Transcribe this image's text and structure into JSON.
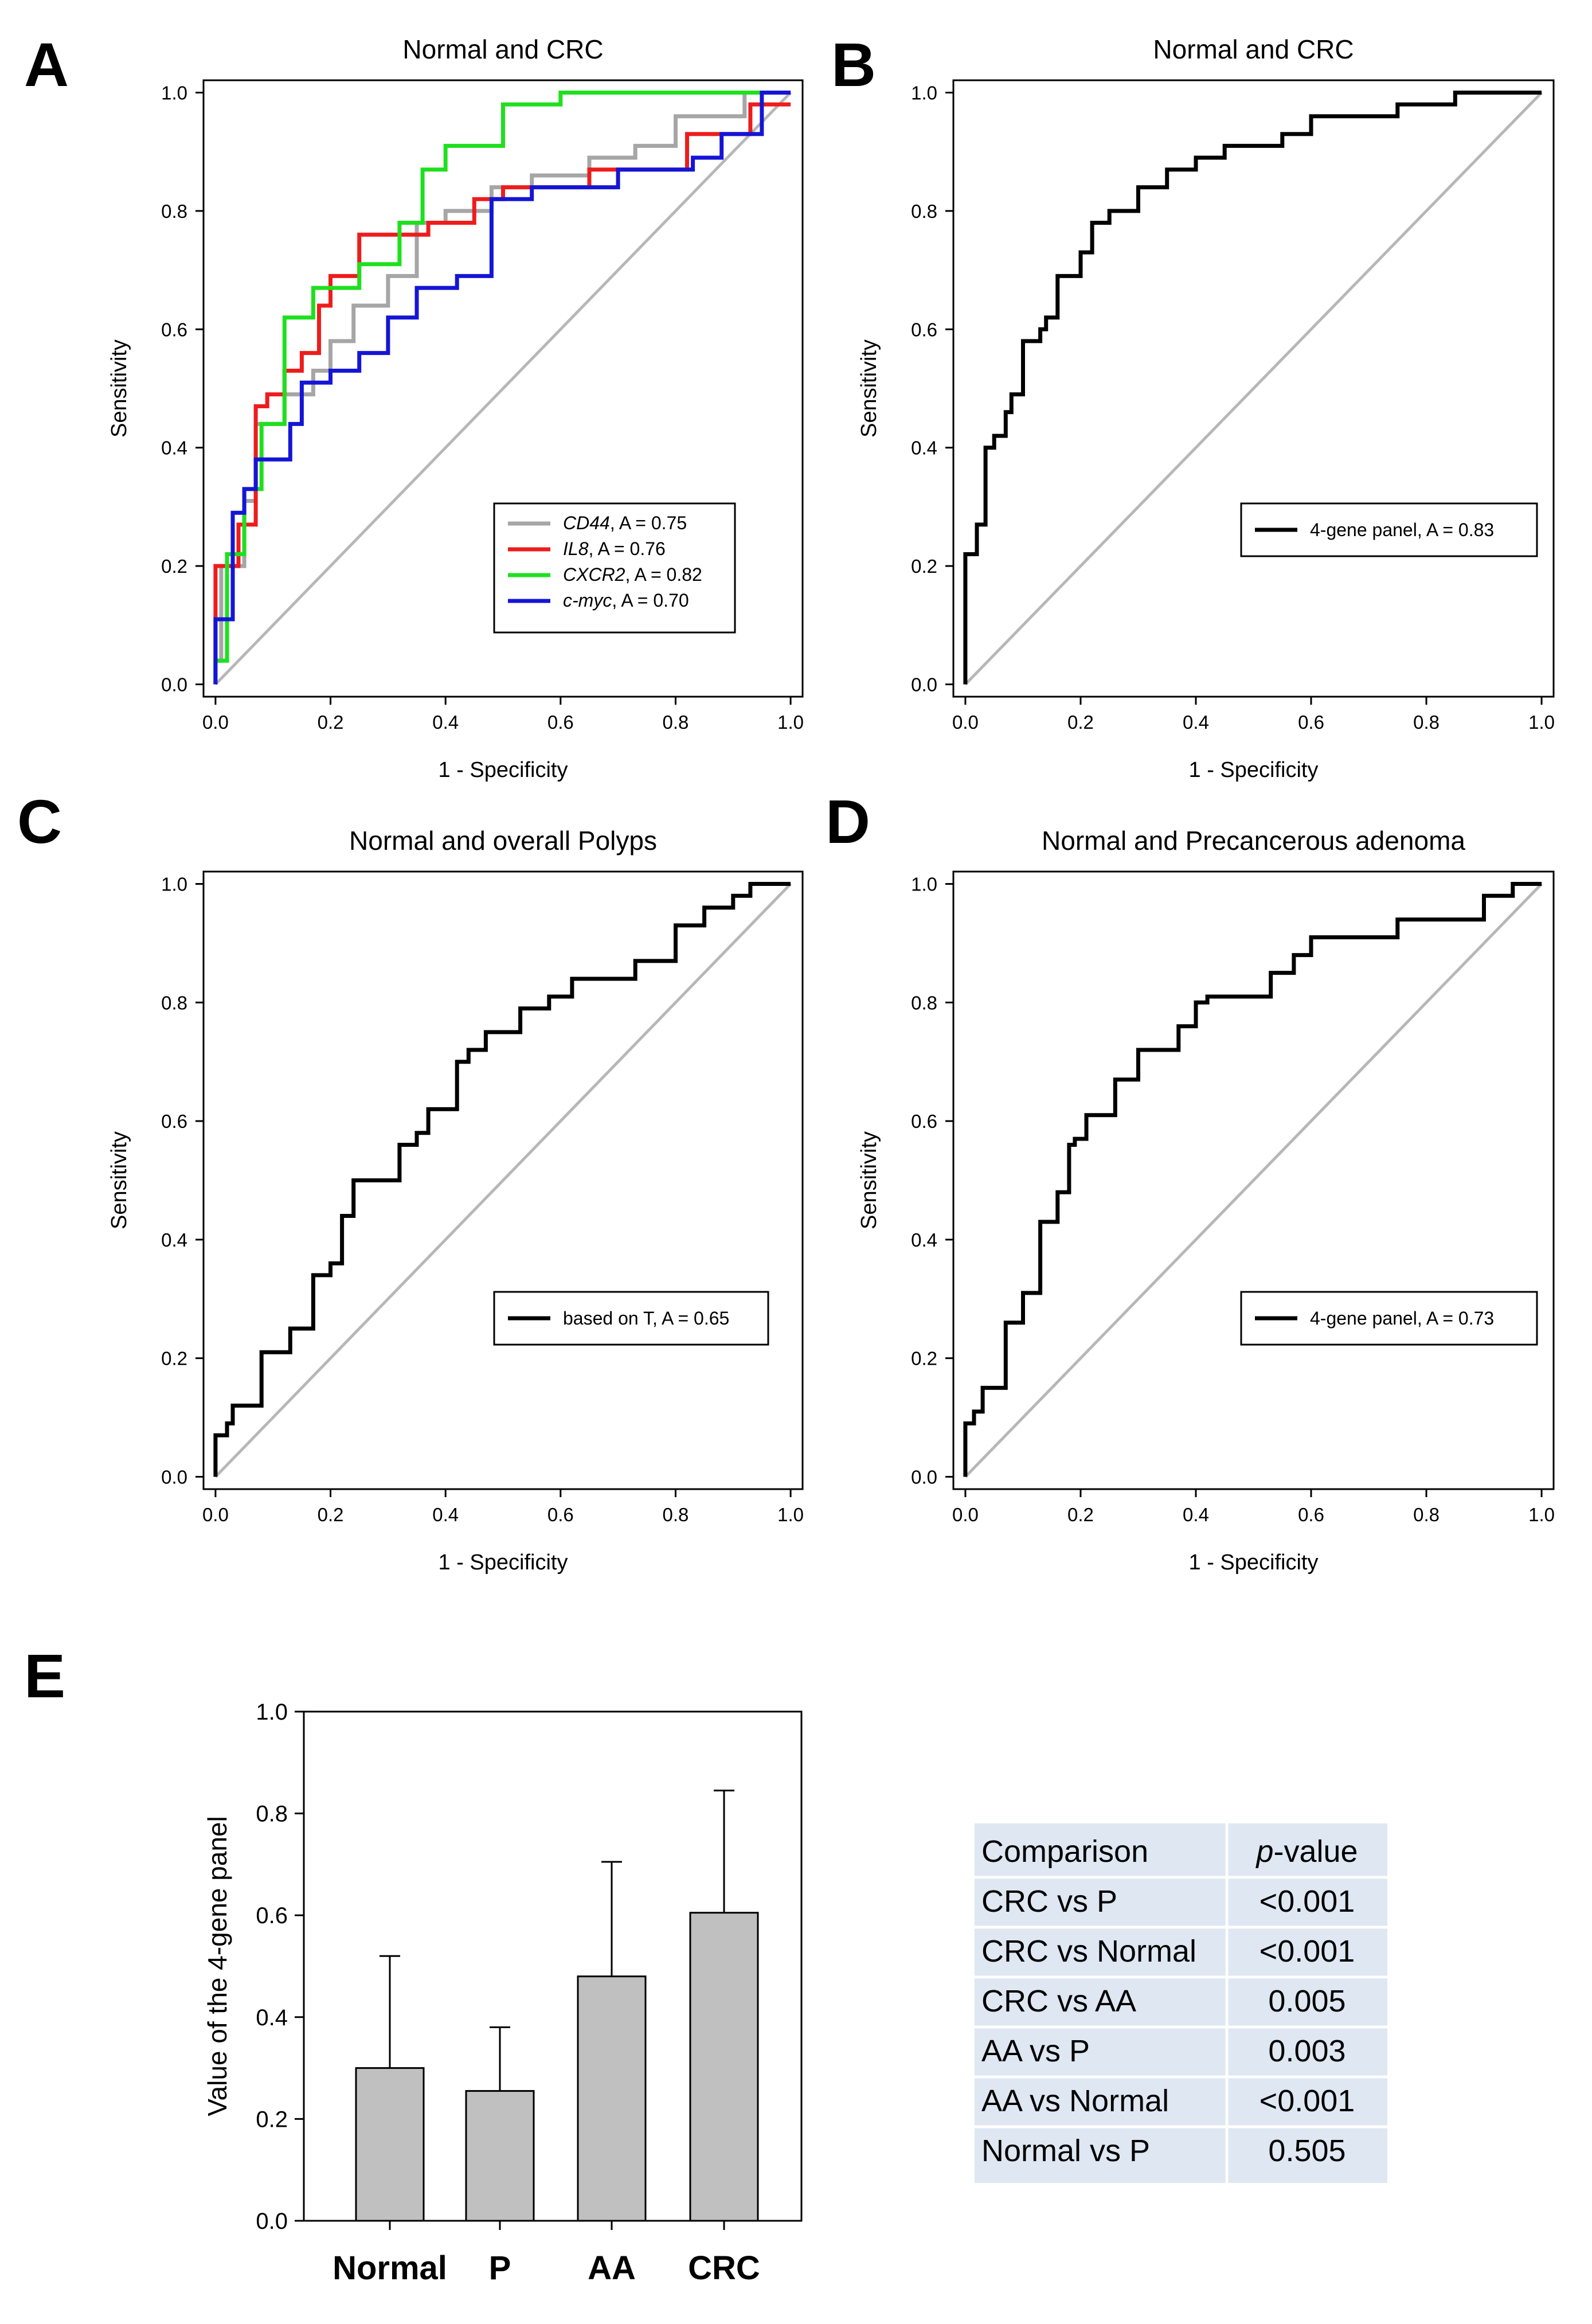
{
  "figure": {
    "panel_letters": [
      "A",
      "B",
      "C",
      "D",
      "E"
    ]
  },
  "colors": {
    "gray": "#a6a6a6",
    "red": "#ee1c1c",
    "green": "#1ee01e",
    "blue": "#1515d6",
    "black": "#000000",
    "bar_fill": "#c0c0c0",
    "table_fill": "#dee7f2"
  },
  "chart_data": [
    {
      "panel": "A",
      "type": "line",
      "title": "Normal and CRC",
      "xlabel": "1 - Specificity",
      "ylabel": "Sensitivity",
      "xlim": [
        0,
        1
      ],
      "ylim": [
        0,
        1
      ],
      "xticks": [
        "0.0",
        "0.2",
        "0.4",
        "0.6",
        "0.8",
        "1.0"
      ],
      "yticks": [
        "0.0",
        "0.2",
        "0.4",
        "0.6",
        "0.8",
        "1.0"
      ],
      "legend_position": "bottom-right",
      "series": [
        {
          "name": "CD44",
          "auc": "A = 0.75",
          "color_key": "gray",
          "x": [
            0,
            0,
            0.01,
            0.01,
            0.05,
            0.05,
            0.07,
            0.07,
            0.12,
            0.12,
            0.17,
            0.17,
            0.2,
            0.2,
            0.24,
            0.24,
            0.3,
            0.3,
            0.35,
            0.35,
            0.4,
            0.4,
            0.48,
            0.48,
            0.55,
            0.55,
            0.65,
            0.65,
            0.73,
            0.73,
            0.8,
            0.8,
            0.92,
            0.92,
            1
          ],
          "y": [
            0,
            0.04,
            0.04,
            0.2,
            0.2,
            0.31,
            0.31,
            0.44,
            0.44,
            0.49,
            0.49,
            0.53,
            0.53,
            0.58,
            0.58,
            0.64,
            0.64,
            0.69,
            0.69,
            0.78,
            0.78,
            0.8,
            0.8,
            0.84,
            0.84,
            0.86,
            0.86,
            0.89,
            0.89,
            0.91,
            0.91,
            0.96,
            0.96,
            1,
            1
          ]
        },
        {
          "name": "IL8",
          "auc": "A = 0.76",
          "color_key": "red",
          "x": [
            0,
            0,
            0.04,
            0.04,
            0.07,
            0.07,
            0.09,
            0.09,
            0.12,
            0.12,
            0.15,
            0.15,
            0.18,
            0.18,
            0.2,
            0.2,
            0.25,
            0.25,
            0.37,
            0.37,
            0.45,
            0.45,
            0.5,
            0.5,
            0.65,
            0.65,
            0.82,
            0.82,
            0.93,
            0.93,
            1
          ],
          "y": [
            0,
            0.2,
            0.2,
            0.27,
            0.27,
            0.47,
            0.47,
            0.49,
            0.49,
            0.53,
            0.53,
            0.56,
            0.56,
            0.64,
            0.64,
            0.69,
            0.69,
            0.76,
            0.76,
            0.78,
            0.78,
            0.82,
            0.82,
            0.84,
            0.84,
            0.87,
            0.87,
            0.93,
            0.93,
            0.98,
            0.98
          ]
        },
        {
          "name": "CXCR2",
          "auc": "A = 0.82",
          "color_key": "green",
          "x": [
            0,
            0,
            0.02,
            0.02,
            0.05,
            0.05,
            0.08,
            0.08,
            0.12,
            0.12,
            0.17,
            0.17,
            0.25,
            0.25,
            0.32,
            0.32,
            0.36,
            0.36,
            0.4,
            0.4,
            0.5,
            0.5,
            0.6,
            0.6,
            0.8,
            0.8,
            1
          ],
          "y": [
            0,
            0.04,
            0.04,
            0.22,
            0.22,
            0.33,
            0.33,
            0.44,
            0.44,
            0.62,
            0.62,
            0.67,
            0.67,
            0.71,
            0.71,
            0.78,
            0.78,
            0.87,
            0.87,
            0.91,
            0.91,
            0.98,
            0.98,
            1,
            1,
            1,
            1
          ]
        },
        {
          "name": "c-myc",
          "auc": "A = 0.70",
          "color_key": "blue",
          "x": [
            0,
            0,
            0.03,
            0.03,
            0.05,
            0.05,
            0.07,
            0.07,
            0.13,
            0.13,
            0.15,
            0.15,
            0.2,
            0.2,
            0.25,
            0.25,
            0.3,
            0.3,
            0.35,
            0.35,
            0.42,
            0.42,
            0.48,
            0.48,
            0.55,
            0.55,
            0.7,
            0.7,
            0.83,
            0.83,
            0.88,
            0.88,
            0.95,
            0.95,
            0.99,
            0.99,
            1
          ],
          "y": [
            0,
            0.11,
            0.11,
            0.29,
            0.29,
            0.33,
            0.33,
            0.38,
            0.38,
            0.44,
            0.44,
            0.51,
            0.51,
            0.53,
            0.53,
            0.56,
            0.56,
            0.62,
            0.62,
            0.67,
            0.67,
            0.69,
            0.69,
            0.82,
            0.82,
            0.84,
            0.84,
            0.87,
            0.87,
            0.89,
            0.89,
            0.93,
            0.93,
            1,
            1,
            1,
            1
          ]
        }
      ]
    },
    {
      "panel": "B",
      "type": "line",
      "title": "Normal and CRC",
      "xlabel": "1 - Specificity",
      "ylabel": "Sensitivity",
      "xlim": [
        0,
        1
      ],
      "ylim": [
        0,
        1
      ],
      "xticks": [
        "0.0",
        "0.2",
        "0.4",
        "0.6",
        "0.8",
        "1.0"
      ],
      "yticks": [
        "0.0",
        "0.2",
        "0.4",
        "0.6",
        "0.8",
        "1.0"
      ],
      "legend_position": "bottom-right",
      "series": [
        {
          "name": "4-gene panel, A = 0.83",
          "color_key": "black",
          "x": [
            0,
            0,
            0.02,
            0.02,
            0.035,
            0.035,
            0.05,
            0.05,
            0.07,
            0.07,
            0.08,
            0.08,
            0.1,
            0.1,
            0.13,
            0.13,
            0.14,
            0.14,
            0.16,
            0.16,
            0.2,
            0.2,
            0.22,
            0.22,
            0.25,
            0.25,
            0.3,
            0.3,
            0.35,
            0.35,
            0.4,
            0.4,
            0.45,
            0.45,
            0.55,
            0.55,
            0.6,
            0.6,
            0.75,
            0.75,
            0.85,
            0.85,
            1
          ],
          "y": [
            0,
            0.22,
            0.22,
            0.27,
            0.27,
            0.4,
            0.4,
            0.42,
            0.42,
            0.46,
            0.46,
            0.49,
            0.49,
            0.58,
            0.58,
            0.6,
            0.6,
            0.62,
            0.62,
            0.69,
            0.69,
            0.73,
            0.73,
            0.78,
            0.78,
            0.8,
            0.8,
            0.84,
            0.84,
            0.87,
            0.87,
            0.89,
            0.89,
            0.91,
            0.91,
            0.93,
            0.93,
            0.96,
            0.96,
            0.98,
            0.98,
            1,
            1
          ]
        }
      ]
    },
    {
      "panel": "C",
      "type": "line",
      "title": "Normal and overall Polyps",
      "xlabel": "1 - Specificity",
      "ylabel": "Sensitivity",
      "xlim": [
        0,
        1
      ],
      "ylim": [
        0,
        1
      ],
      "xticks": [
        "0.0",
        "0.2",
        "0.4",
        "0.6",
        "0.8",
        "1.0"
      ],
      "yticks": [
        "0.0",
        "0.2",
        "0.4",
        "0.6",
        "0.8",
        "1.0"
      ],
      "legend_position": "bottom-right",
      "series": [
        {
          "name": "based on T, A = 0.65",
          "color_key": "black",
          "x": [
            0,
            0,
            0.02,
            0.02,
            0.03,
            0.03,
            0.08,
            0.08,
            0.13,
            0.13,
            0.17,
            0.17,
            0.2,
            0.2,
            0.22,
            0.22,
            0.24,
            0.24,
            0.32,
            0.32,
            0.35,
            0.35,
            0.37,
            0.37,
            0.42,
            0.42,
            0.44,
            0.44,
            0.47,
            0.47,
            0.53,
            0.53,
            0.58,
            0.58,
            0.62,
            0.62,
            0.73,
            0.73,
            0.8,
            0.8,
            0.85,
            0.85,
            0.9,
            0.9,
            0.93,
            0.93,
            1
          ],
          "y": [
            0,
            0.07,
            0.07,
            0.09,
            0.09,
            0.12,
            0.12,
            0.21,
            0.21,
            0.25,
            0.25,
            0.34,
            0.34,
            0.36,
            0.36,
            0.44,
            0.44,
            0.5,
            0.5,
            0.56,
            0.56,
            0.58,
            0.58,
            0.62,
            0.62,
            0.7,
            0.7,
            0.72,
            0.72,
            0.75,
            0.75,
            0.79,
            0.79,
            0.81,
            0.81,
            0.84,
            0.84,
            0.87,
            0.87,
            0.93,
            0.93,
            0.96,
            0.96,
            0.98,
            0.98,
            1,
            1
          ]
        }
      ]
    },
    {
      "panel": "D",
      "type": "line",
      "title": "Normal and Precancerous adenoma",
      "xlabel": "1 - Specificity",
      "ylabel": "Sensitivity",
      "xlim": [
        0,
        1
      ],
      "ylim": [
        0,
        1
      ],
      "xticks": [
        "0.0",
        "0.2",
        "0.4",
        "0.6",
        "0.8",
        "1.0"
      ],
      "yticks": [
        "0.0",
        "0.2",
        "0.4",
        "0.6",
        "0.8",
        "1.0"
      ],
      "legend_position": "bottom-right",
      "series": [
        {
          "name": "4-gene panel, A = 0.73",
          "color_key": "black",
          "x": [
            0,
            0,
            0.015,
            0.015,
            0.03,
            0.03,
            0.07,
            0.07,
            0.1,
            0.1,
            0.13,
            0.13,
            0.16,
            0.16,
            0.18,
            0.18,
            0.19,
            0.19,
            0.21,
            0.21,
            0.26,
            0.26,
            0.3,
            0.3,
            0.37,
            0.37,
            0.4,
            0.4,
            0.42,
            0.42,
            0.53,
            0.53,
            0.57,
            0.57,
            0.6,
            0.6,
            0.75,
            0.75,
            0.9,
            0.9,
            0.95,
            0.95,
            1
          ],
          "y": [
            0,
            0.09,
            0.09,
            0.11,
            0.11,
            0.15,
            0.15,
            0.26,
            0.26,
            0.31,
            0.31,
            0.43,
            0.43,
            0.48,
            0.48,
            0.56,
            0.56,
            0.57,
            0.57,
            0.61,
            0.61,
            0.67,
            0.67,
            0.72,
            0.72,
            0.76,
            0.76,
            0.8,
            0.8,
            0.81,
            0.81,
            0.85,
            0.85,
            0.88,
            0.88,
            0.91,
            0.91,
            0.94,
            0.94,
            0.98,
            0.98,
            1,
            1
          ]
        }
      ]
    },
    {
      "panel": "E",
      "type": "bar",
      "title": "",
      "xlabel": "",
      "ylabel": "Value of the 4-gene panel",
      "ylim": [
        0,
        1
      ],
      "yticks": [
        "0.0",
        "0.2",
        "0.4",
        "0.6",
        "0.8",
        "1.0"
      ],
      "categories": [
        "Normal",
        "P",
        "AA",
        "CRC"
      ],
      "values": [
        0.3,
        0.255,
        0.48,
        0.605
      ],
      "error_upper": [
        0.52,
        0.38,
        0.705,
        0.845
      ]
    }
  ],
  "legends": {
    "A": [
      {
        "name": "CD44",
        "suffix": ", A = 0.75",
        "color_key": "gray"
      },
      {
        "name": "IL8",
        "suffix": ", A = 0.76",
        "color_key": "red"
      },
      {
        "name": "CXCR2",
        "suffix": ", A = 0.82",
        "color_key": "green"
      },
      {
        "name": "c-myc",
        "suffix": ", A = 0.70",
        "color_key": "blue"
      }
    ],
    "B": "4-gene panel, A = 0.83",
    "C": "based on T, A = 0.65",
    "D": "4-gene panel, A = 0.73"
  },
  "comparison_table": {
    "header": {
      "col1": "Comparison",
      "col2_italic": "p",
      "col2_rest": "-value"
    },
    "rows": [
      {
        "comparison": "CRC vs P",
        "p_value": "<0.001"
      },
      {
        "comparison": "CRC vs Normal",
        "p_value": "<0.001"
      },
      {
        "comparison": "CRC vs AA",
        "p_value": "0.005"
      },
      {
        "comparison": "AA vs P",
        "p_value": "0.003"
      },
      {
        "comparison": "AA vs Normal",
        "p_value": "<0.001"
      },
      {
        "comparison": "Normal vs P",
        "p_value": "0.505"
      }
    ]
  }
}
